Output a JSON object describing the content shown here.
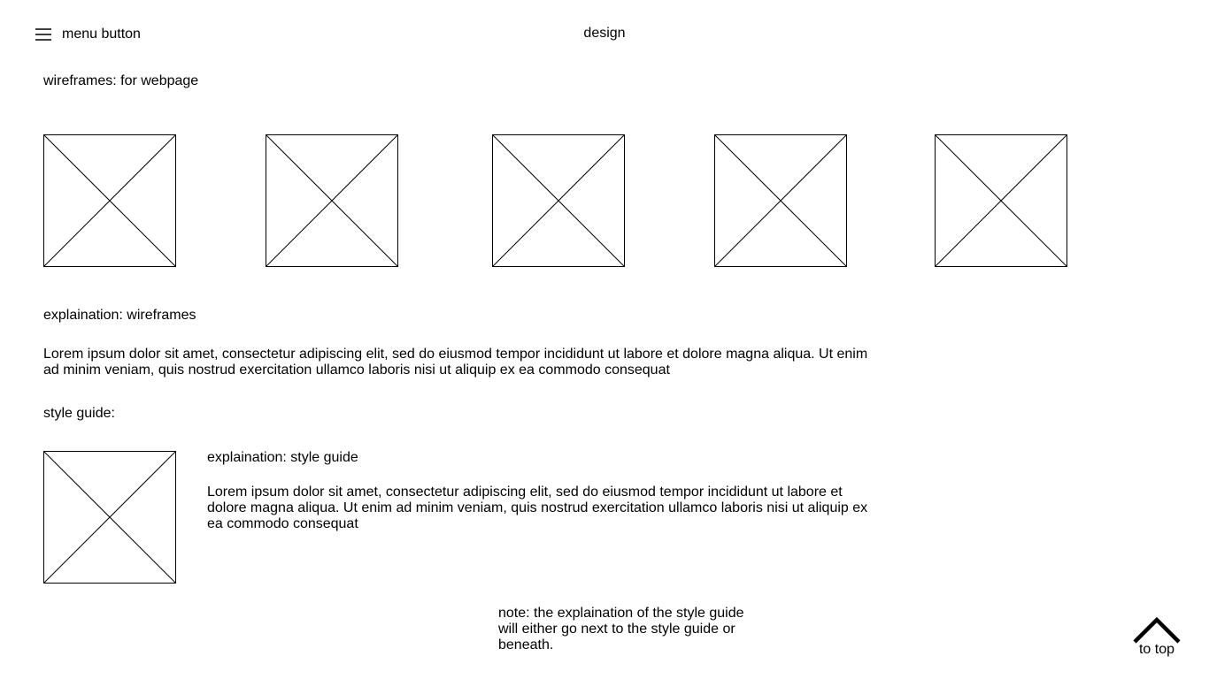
{
  "header": {
    "menu_button_label": "menu button",
    "title": "design"
  },
  "wireframes": {
    "heading": "wireframes: for webpage",
    "image_count": 5
  },
  "explanation_wireframes": {
    "heading": "explaination: wireframes",
    "body_line_1": "Lorem ipsum dolor sit amet, consectetur adipiscing elit, sed do eiusmod tempor incididunt ut labore et dolore magna aliqua. Ut enim",
    "body_line_2": "ad minim veniam, quis nostrud exercitation ullamco laboris nisi ut aliquip ex ea commodo consequat"
  },
  "style_guide": {
    "heading": "style guide:",
    "explanation_heading": "explaination: style guide",
    "body_line_1": "Lorem ipsum dolor sit amet, consectetur adipiscing elit, sed do eiusmod tempor incididunt ut labore et",
    "body_line_2": "dolore magna aliqua. Ut enim ad minim veniam, quis nostrud exercitation ullamco laboris nisi ut aliquip ex",
    "body_line_3": "ea commodo consequat"
  },
  "note": {
    "line_1": "note: the explaination of the style guide",
    "line_2": "will either go next to the style guide or",
    "line_3": "beneath."
  },
  "footer": {
    "to_top_label": "to top",
    "to_top_icon": "chevron-up-icon"
  }
}
